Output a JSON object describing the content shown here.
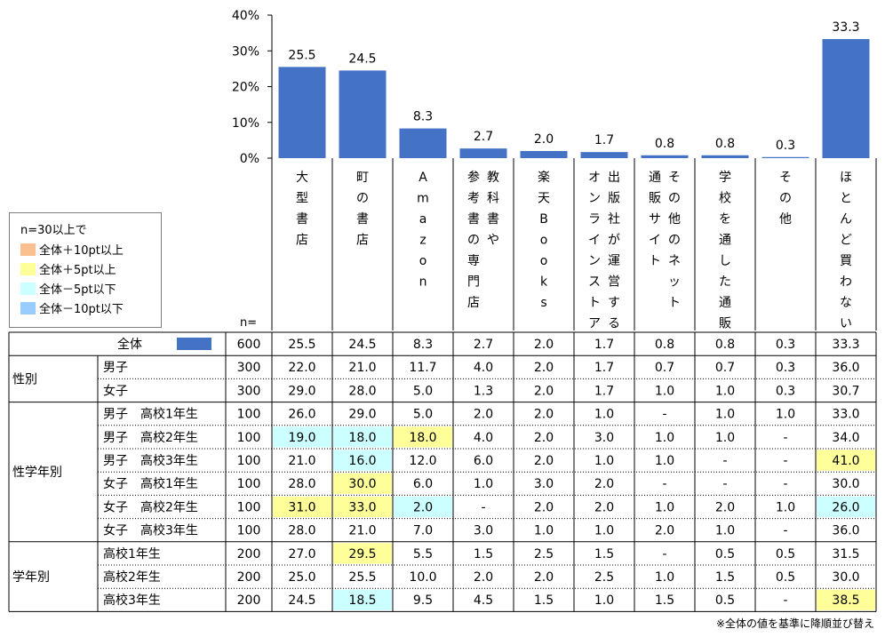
{
  "chart_data": {
    "type": "bar",
    "categories": [
      "大型書店",
      "町の書店",
      "Amazon",
      "教科書や参考書の専門店",
      "楽天Books",
      "出版社が運営するオンラインストア",
      "その他のネット通販サイト",
      "学校を通した通販",
      "その他",
      "ほとんど買わない"
    ],
    "category_columns": [
      [
        "大型書店"
      ],
      [
        "町の書店"
      ],
      [
        "Amazon"
      ],
      [
        "教科書や",
        "参考書の専門店"
      ],
      [
        "楽天Books"
      ],
      [
        "出版社が運営する",
        "オンラインストア"
      ],
      [
        "その他のネット",
        "通販サイト"
      ],
      [
        "学校を通した通販"
      ],
      [
        "その他"
      ],
      [
        "ほとんど買わない"
      ]
    ],
    "values": [
      25.5,
      24.5,
      8.3,
      2.7,
      2.0,
      1.7,
      0.8,
      0.8,
      0.3,
      33.3
    ],
    "value_labels": [
      "25.5",
      "24.5",
      "8.3",
      "2.7",
      "2.0",
      "1.7",
      "0.8",
      "0.8",
      "0.3",
      "33.3"
    ],
    "ylim": [
      0,
      40
    ],
    "yticks": [
      "0%",
      "10%",
      "20%",
      "30%",
      "40%"
    ],
    "bar_color": "#4472c4",
    "grid": false,
    "legend_placement": "left"
  },
  "legend": {
    "title": "n=30以上で",
    "items": [
      {
        "label": "全体＋10pt以上",
        "color": "#fac090"
      },
      {
        "label": "全体＋5pt以上",
        "color": "#ffff99"
      },
      {
        "label": "全体－5pt以下",
        "color": "#ccffff"
      },
      {
        "label": "全体－10pt以下",
        "color": "#99ccff"
      }
    ]
  },
  "n_label": "n=",
  "table": {
    "total": {
      "label": "全体",
      "n": "600",
      "values": [
        "25.5",
        "24.5",
        "8.3",
        "2.7",
        "2.0",
        "1.7",
        "0.8",
        "0.8",
        "0.3",
        "33.3"
      ]
    },
    "groups": [
      {
        "name": "性別",
        "rows": [
          {
            "label": "男子",
            "n": "300",
            "values": [
              "22.0",
              "21.0",
              "11.7",
              "4.0",
              "2.0",
              "1.7",
              "0.7",
              "0.7",
              "0.3",
              "36.0"
            ],
            "hl": [
              0,
              0,
              0,
              0,
              0,
              0,
              0,
              0,
              0,
              0
            ]
          },
          {
            "label": "女子",
            "n": "300",
            "values": [
              "29.0",
              "28.0",
              "5.0",
              "1.3",
              "2.0",
              "1.7",
              "1.0",
              "1.0",
              "0.3",
              "30.7"
            ],
            "hl": [
              0,
              0,
              0,
              0,
              0,
              0,
              0,
              0,
              0,
              0
            ]
          }
        ]
      },
      {
        "name": "性学年別",
        "rows": [
          {
            "label": "男子　高校1年生",
            "n": "100",
            "values": [
              "26.0",
              "29.0",
              "5.0",
              "2.0",
              "2.0",
              "1.0",
              "-",
              "1.0",
              "1.0",
              "33.0"
            ],
            "hl": [
              0,
              0,
              0,
              0,
              0,
              0,
              0,
              0,
              0,
              0
            ]
          },
          {
            "label": "男子　高校2年生",
            "n": "100",
            "values": [
              "19.0",
              "18.0",
              "18.0",
              "4.0",
              "2.0",
              "3.0",
              "1.0",
              "1.0",
              "-",
              "34.0"
            ],
            "hl": [
              3,
              3,
              2,
              0,
              0,
              0,
              0,
              0,
              0,
              0
            ]
          },
          {
            "label": "男子　高校3年生",
            "n": "100",
            "values": [
              "21.0",
              "16.0",
              "12.0",
              "6.0",
              "2.0",
              "1.0",
              "1.0",
              "-",
              "-",
              "41.0"
            ],
            "hl": [
              0,
              3,
              0,
              0,
              0,
              0,
              0,
              0,
              0,
              2
            ]
          },
          {
            "label": "女子　高校1年生",
            "n": "100",
            "values": [
              "28.0",
              "30.0",
              "6.0",
              "1.0",
              "3.0",
              "2.0",
              "-",
              "-",
              "-",
              "30.0"
            ],
            "hl": [
              0,
              2,
              0,
              0,
              0,
              0,
              0,
              0,
              0,
              0
            ]
          },
          {
            "label": "女子　高校2年生",
            "n": "100",
            "values": [
              "31.0",
              "33.0",
              "2.0",
              "-",
              "2.0",
              "2.0",
              "1.0",
              "2.0",
              "1.0",
              "26.0"
            ],
            "hl": [
              2,
              2,
              3,
              0,
              0,
              0,
              0,
              0,
              0,
              3
            ]
          },
          {
            "label": "女子　高校3年生",
            "n": "100",
            "values": [
              "28.0",
              "21.0",
              "7.0",
              "3.0",
              "1.0",
              "1.0",
              "2.0",
              "1.0",
              "-",
              "36.0"
            ],
            "hl": [
              0,
              0,
              0,
              0,
              0,
              0,
              0,
              0,
              0,
              0
            ]
          }
        ]
      },
      {
        "name": "学年別",
        "rows": [
          {
            "label": "高校1年生",
            "n": "200",
            "values": [
              "27.0",
              "29.5",
              "5.5",
              "1.5",
              "2.5",
              "1.5",
              "-",
              "0.5",
              "0.5",
              "31.5"
            ],
            "hl": [
              0,
              2,
              0,
              0,
              0,
              0,
              0,
              0,
              0,
              0
            ]
          },
          {
            "label": "高校2年生",
            "n": "200",
            "values": [
              "25.0",
              "25.5",
              "10.0",
              "2.0",
              "2.0",
              "2.5",
              "1.0",
              "1.5",
              "0.5",
              "30.0"
            ],
            "hl": [
              0,
              0,
              0,
              0,
              0,
              0,
              0,
              0,
              0,
              0
            ]
          },
          {
            "label": "高校3年生",
            "n": "200",
            "values": [
              "24.5",
              "18.5",
              "9.5",
              "4.5",
              "1.5",
              "1.0",
              "1.5",
              "0.5",
              "-",
              "38.5"
            ],
            "hl": [
              0,
              3,
              0,
              0,
              0,
              0,
              0,
              0,
              0,
              2
            ]
          }
        ]
      }
    ]
  },
  "footnote": "※全体の値を基準に降順並び替え"
}
